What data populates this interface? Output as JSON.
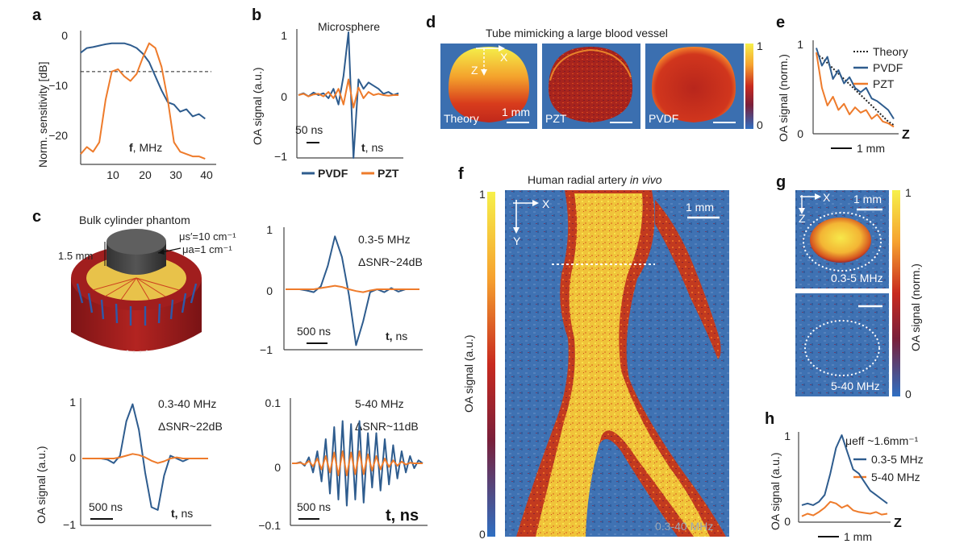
{
  "colors": {
    "pvdf": "#2e5c8e",
    "pzt": "#ee7b2b",
    "arterial": "#ffd23a",
    "background": "#3b6fb0"
  },
  "panel_labels": {
    "a": "a",
    "b": "b",
    "c": "c",
    "d": "d",
    "e": "e",
    "f": "f",
    "g": "g",
    "h": "h"
  },
  "panel_a": {
    "ylabel": "Norm. sensitivity [dB]",
    "xlabel_bold": "f",
    "xlabel_rest": ", MHz",
    "yticks": [
      "0",
      "−10",
      "−20"
    ],
    "xticks": [
      "10",
      "20",
      "30",
      "40"
    ]
  },
  "panel_b": {
    "title": "Microsphere",
    "ylabel": "OA signal (a.u.)",
    "yticks": [
      "1",
      "0",
      "−1"
    ],
    "scale": "50 ns",
    "xlabel_bold": "t",
    "xlabel_rest": ", ns",
    "legend": [
      "PVDF",
      "PZT"
    ]
  },
  "panel_c": {
    "phantom_title": "Bulk cylinder phantom",
    "height_label": "1.5 mm",
    "mus_label": "μs′=10 cm⁻¹",
    "mua_label": "μa=1 cm⁻¹",
    "c1": {
      "band": "0.3-5 MHz",
      "snr": "ΔSNR~24dB",
      "yticks": [
        "1",
        "0",
        "−1"
      ],
      "scale": "500 ns",
      "xlabel_bold": "t,",
      "xlabel_rest": " ns"
    },
    "c2": {
      "band": "0.3-40 MHz",
      "snr": "ΔSNR~22dB",
      "yticks": [
        "1",
        "0",
        "−1"
      ],
      "scale": "500 ns",
      "xlabel_bold": "t,",
      "xlabel_rest": " ns",
      "ylabel": "OA signal (a.u.)"
    },
    "c3": {
      "band": "5-40 MHz",
      "snr": "ΔSNR~11dB",
      "yticks": [
        "0.1",
        "0",
        "−0.1"
      ],
      "scale": "500 ns",
      "xlabel": "t, ns"
    }
  },
  "panel_d": {
    "title": "Tube mimicking a large blood vessel",
    "images": [
      "Theory",
      "PZT",
      "PVDF"
    ],
    "scale": "1 mm",
    "axis_x": "X",
    "axis_z": "Z",
    "cbar": [
      "1",
      "0"
    ]
  },
  "panel_e": {
    "ylabel": "OA signal (norm.)",
    "yticks": [
      "1",
      "0.5",
      "0"
    ],
    "legend": [
      "Theory",
      "PVDF",
      "PZT"
    ],
    "scale": "1 mm",
    "axis": "Z"
  },
  "panel_f": {
    "title_main": "Human radial artery ",
    "title_italic": "in vivo",
    "ylabel": "OA signal (a.u.)",
    "cbar": [
      "1",
      "0"
    ],
    "axis_x": "X",
    "axis_y": "Y",
    "scale": "1 mm",
    "band": "0.3-40 MHz"
  },
  "panel_g": {
    "axis_x": "X",
    "axis_z": "Z",
    "scale": "1 mm",
    "bands": [
      "0.3-5 MHz",
      "5-40 MHz"
    ],
    "cbar": [
      "1",
      "0"
    ],
    "ylabel": "OA signal (norm.)"
  },
  "panel_h": {
    "ylabel": "OA signal (a.u.)",
    "yticks": [
      "1",
      "0"
    ],
    "mu_eff": "μeff ~1.6mm⁻¹",
    "legend": [
      "0.3-5 MHz",
      "5-40 MHz"
    ],
    "scale": "1 mm",
    "axis": "Z"
  },
  "chart_data": [
    {
      "type": "line",
      "id": "a",
      "xlabel": "f, MHz",
      "ylabel": "Norm. sensitivity [dB]",
      "xlim": [
        0,
        42
      ],
      "ylim": [
        -25,
        2
      ],
      "threshold_db": -6,
      "series": [
        {
          "name": "PVDF",
          "x": [
            0,
            2,
            4,
            6,
            8,
            10,
            12,
            14,
            16,
            18,
            20,
            22,
            24,
            26,
            28,
            30,
            32,
            34,
            36,
            38,
            40
          ],
          "y": [
            -2,
            -1,
            -0.8,
            -0.5,
            -0.2,
            0,
            0,
            0,
            -0.4,
            -1,
            -2.2,
            -4,
            -7,
            -10,
            -12.5,
            -13,
            -14.5,
            -14,
            -15.5,
            -15,
            -16
          ]
        },
        {
          "name": "PZT",
          "x": [
            0,
            2,
            4,
            6,
            8,
            10,
            12,
            14,
            16,
            18,
            20,
            22,
            24,
            26,
            28,
            30,
            32,
            34,
            36,
            38,
            40
          ],
          "y": [
            -23.5,
            -22,
            -23,
            -21,
            -12,
            -6,
            -5.5,
            -7,
            -8,
            -6.5,
            -3,
            0,
            -1,
            -5,
            -12,
            -21,
            -23,
            -23.5,
            -24,
            -24,
            -24.5
          ]
        }
      ]
    },
    {
      "type": "line",
      "id": "b",
      "xlabel": "t, ns",
      "ylabel": "OA signal (a.u.)",
      "ylim": [
        -1,
        1
      ],
      "series": [
        {
          "name": "PVDF",
          "y": [
            0,
            0.03,
            -0.02,
            0.04,
            0,
            0.03,
            -0.05,
            0.1,
            -0.15,
            0.3,
            1,
            -1,
            0.25,
            0.1,
            0.2,
            0.15,
            0.1,
            0.02,
            0.05,
            0,
            0.03
          ]
        },
        {
          "name": "PZT",
          "y": [
            0,
            0.02,
            -0.02,
            0.01,
            0.02,
            -0.02,
            0.05,
            -0.05,
            0.1,
            -0.15,
            0.25,
            -0.2,
            0.12,
            -0.05,
            0.05,
            0,
            0.02,
            0,
            -0.01,
            0,
            0
          ]
        }
      ]
    },
    {
      "type": "line",
      "id": "c1",
      "band": "0.3-5 MHz",
      "ylim": [
        -1,
        1
      ],
      "series": [
        {
          "name": "PVDF",
          "y": [
            0,
            0,
            0,
            -0.02,
            -0.05,
            0.05,
            0.4,
            0.9,
            0.55,
            -0.1,
            -0.95,
            -0.55,
            -0.05,
            0,
            -0.05,
            0.02,
            -0.04,
            0,
            0,
            0
          ]
        },
        {
          "name": "PZT",
          "y": [
            0,
            0,
            0,
            0,
            0,
            0.02,
            0.04,
            0.06,
            0.04,
            0,
            -0.03,
            -0.05,
            -0.02,
            0,
            0,
            0,
            0,
            0,
            0,
            0
          ]
        }
      ]
    },
    {
      "type": "line",
      "id": "c2",
      "band": "0.3-40 MHz",
      "ylim": [
        -1,
        1
      ],
      "series": [
        {
          "name": "PVDF",
          "y": [
            0,
            0,
            0,
            0,
            -0.02,
            -0.08,
            0.05,
            0.65,
            0.95,
            0.5,
            -0.25,
            -0.85,
            -0.9,
            -0.3,
            0.05,
            0,
            -0.05,
            0,
            0,
            0,
            0
          ]
        },
        {
          "name": "PZT",
          "y": [
            0,
            0,
            0,
            0,
            0,
            0,
            0.02,
            0.05,
            0.08,
            0.06,
            0.02,
            -0.04,
            -0.08,
            -0.05,
            0,
            0.02,
            0,
            0,
            0,
            0,
            0
          ]
        }
      ]
    },
    {
      "type": "line",
      "id": "c3",
      "band": "5-40 MHz",
      "ylim": [
        -0.1,
        0.1
      ],
      "series": [
        {
          "name": "PVDF",
          "y": [
            0,
            0,
            0.002,
            -0.004,
            0.01,
            -0.015,
            0.02,
            -0.03,
            0.04,
            -0.05,
            0.06,
            -0.06,
            0.07,
            -0.07,
            0.065,
            -0.06,
            0.07,
            -0.065,
            0.05,
            -0.04,
            0.05,
            -0.045,
            0.04,
            -0.035,
            0.03,
            -0.025,
            0.02,
            -0.015,
            0.012,
            -0.008,
            0.005,
            0
          ]
        },
        {
          "name": "PZT",
          "y": [
            0,
            0,
            0.001,
            -0.002,
            0.004,
            -0.005,
            0.008,
            -0.01,
            0.012,
            -0.015,
            0.018,
            -0.02,
            0.02,
            -0.02,
            0.018,
            -0.018,
            0.02,
            -0.018,
            0.015,
            -0.012,
            0.012,
            -0.01,
            0.008,
            -0.006,
            0.005,
            -0.004,
            0.003,
            -0.002,
            0.001,
            0,
            0,
            0
          ]
        }
      ]
    },
    {
      "type": "line",
      "id": "e",
      "ylabel": "OA signal (norm.)",
      "ylim": [
        0,
        1
      ],
      "series": [
        {
          "name": "Theory",
          "y": [
            0.88,
            0.84,
            0.78,
            0.72,
            0.66,
            0.6,
            0.54,
            0.48,
            0.42,
            0.36,
            0.3,
            0.24,
            0.18,
            0.12,
            0.08
          ]
        },
        {
          "name": "PVDF",
          "y": [
            0.95,
            0.75,
            0.85,
            0.6,
            0.7,
            0.55,
            0.62,
            0.5,
            0.45,
            0.5,
            0.38,
            0.35,
            0.3,
            0.25,
            0.15
          ]
        },
        {
          "name": "PZT",
          "y": [
            0.9,
            0.5,
            0.3,
            0.4,
            0.25,
            0.32,
            0.2,
            0.28,
            0.22,
            0.25,
            0.15,
            0.2,
            0.12,
            0.1,
            0.06
          ]
        }
      ]
    },
    {
      "type": "line",
      "id": "h",
      "ylabel": "OA signal (a.u.)",
      "ylim": [
        0,
        1
      ],
      "series": [
        {
          "name": "0.3-5 MHz",
          "y": [
            0.18,
            0.2,
            0.18,
            0.22,
            0.3,
            0.55,
            0.85,
            1,
            0.8,
            0.6,
            0.55,
            0.45,
            0.35,
            0.3,
            0.25,
            0.2
          ]
        },
        {
          "name": "5-40 MHz",
          "y": [
            0.05,
            0.08,
            0.06,
            0.1,
            0.15,
            0.22,
            0.2,
            0.15,
            0.18,
            0.12,
            0.1,
            0.09,
            0.08,
            0.1,
            0.07,
            0.08
          ]
        }
      ]
    }
  ]
}
